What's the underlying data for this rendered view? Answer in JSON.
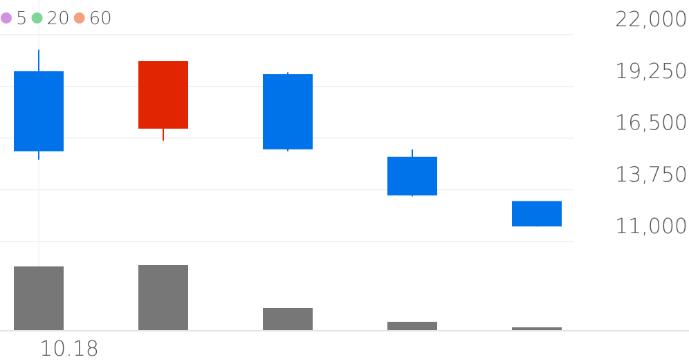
{
  "chart_data": {
    "type": "candlestick",
    "categories": [
      "10.18",
      null,
      null,
      null,
      null
    ],
    "open": [
      20050,
      17000,
      19900,
      15500,
      13150
    ],
    "high": [
      21200,
      20600,
      20000,
      15900,
      13150
    ],
    "low": [
      15350,
      16350,
      15800,
      13400,
      11800
    ],
    "close": [
      15800,
      20600,
      15900,
      13450,
      11800
    ],
    "volume": [
      920000,
      940000,
      320000,
      120000,
      40000
    ],
    "volume_lim": [
      0,
      1280000
    ],
    "volume_color": "#777777",
    "up_color": "#e02500",
    "down_color": "#0073ea",
    "ylim": [
      11000,
      22000
    ],
    "yticks": [
      {
        "value": 22000,
        "label": "22,000"
      },
      {
        "value": 19250,
        "label": "19,250"
      },
      {
        "value": 16500,
        "label": "16,500"
      },
      {
        "value": 13750,
        "label": "13,750"
      },
      {
        "value": 11000,
        "label": "11,000"
      }
    ],
    "grid": true,
    "legend": [
      {
        "name": "5",
        "color": "#d291e0"
      },
      {
        "name": "20",
        "color": "#7fd49a"
      },
      {
        "name": "60",
        "color": "#f4a07f"
      }
    ]
  }
}
